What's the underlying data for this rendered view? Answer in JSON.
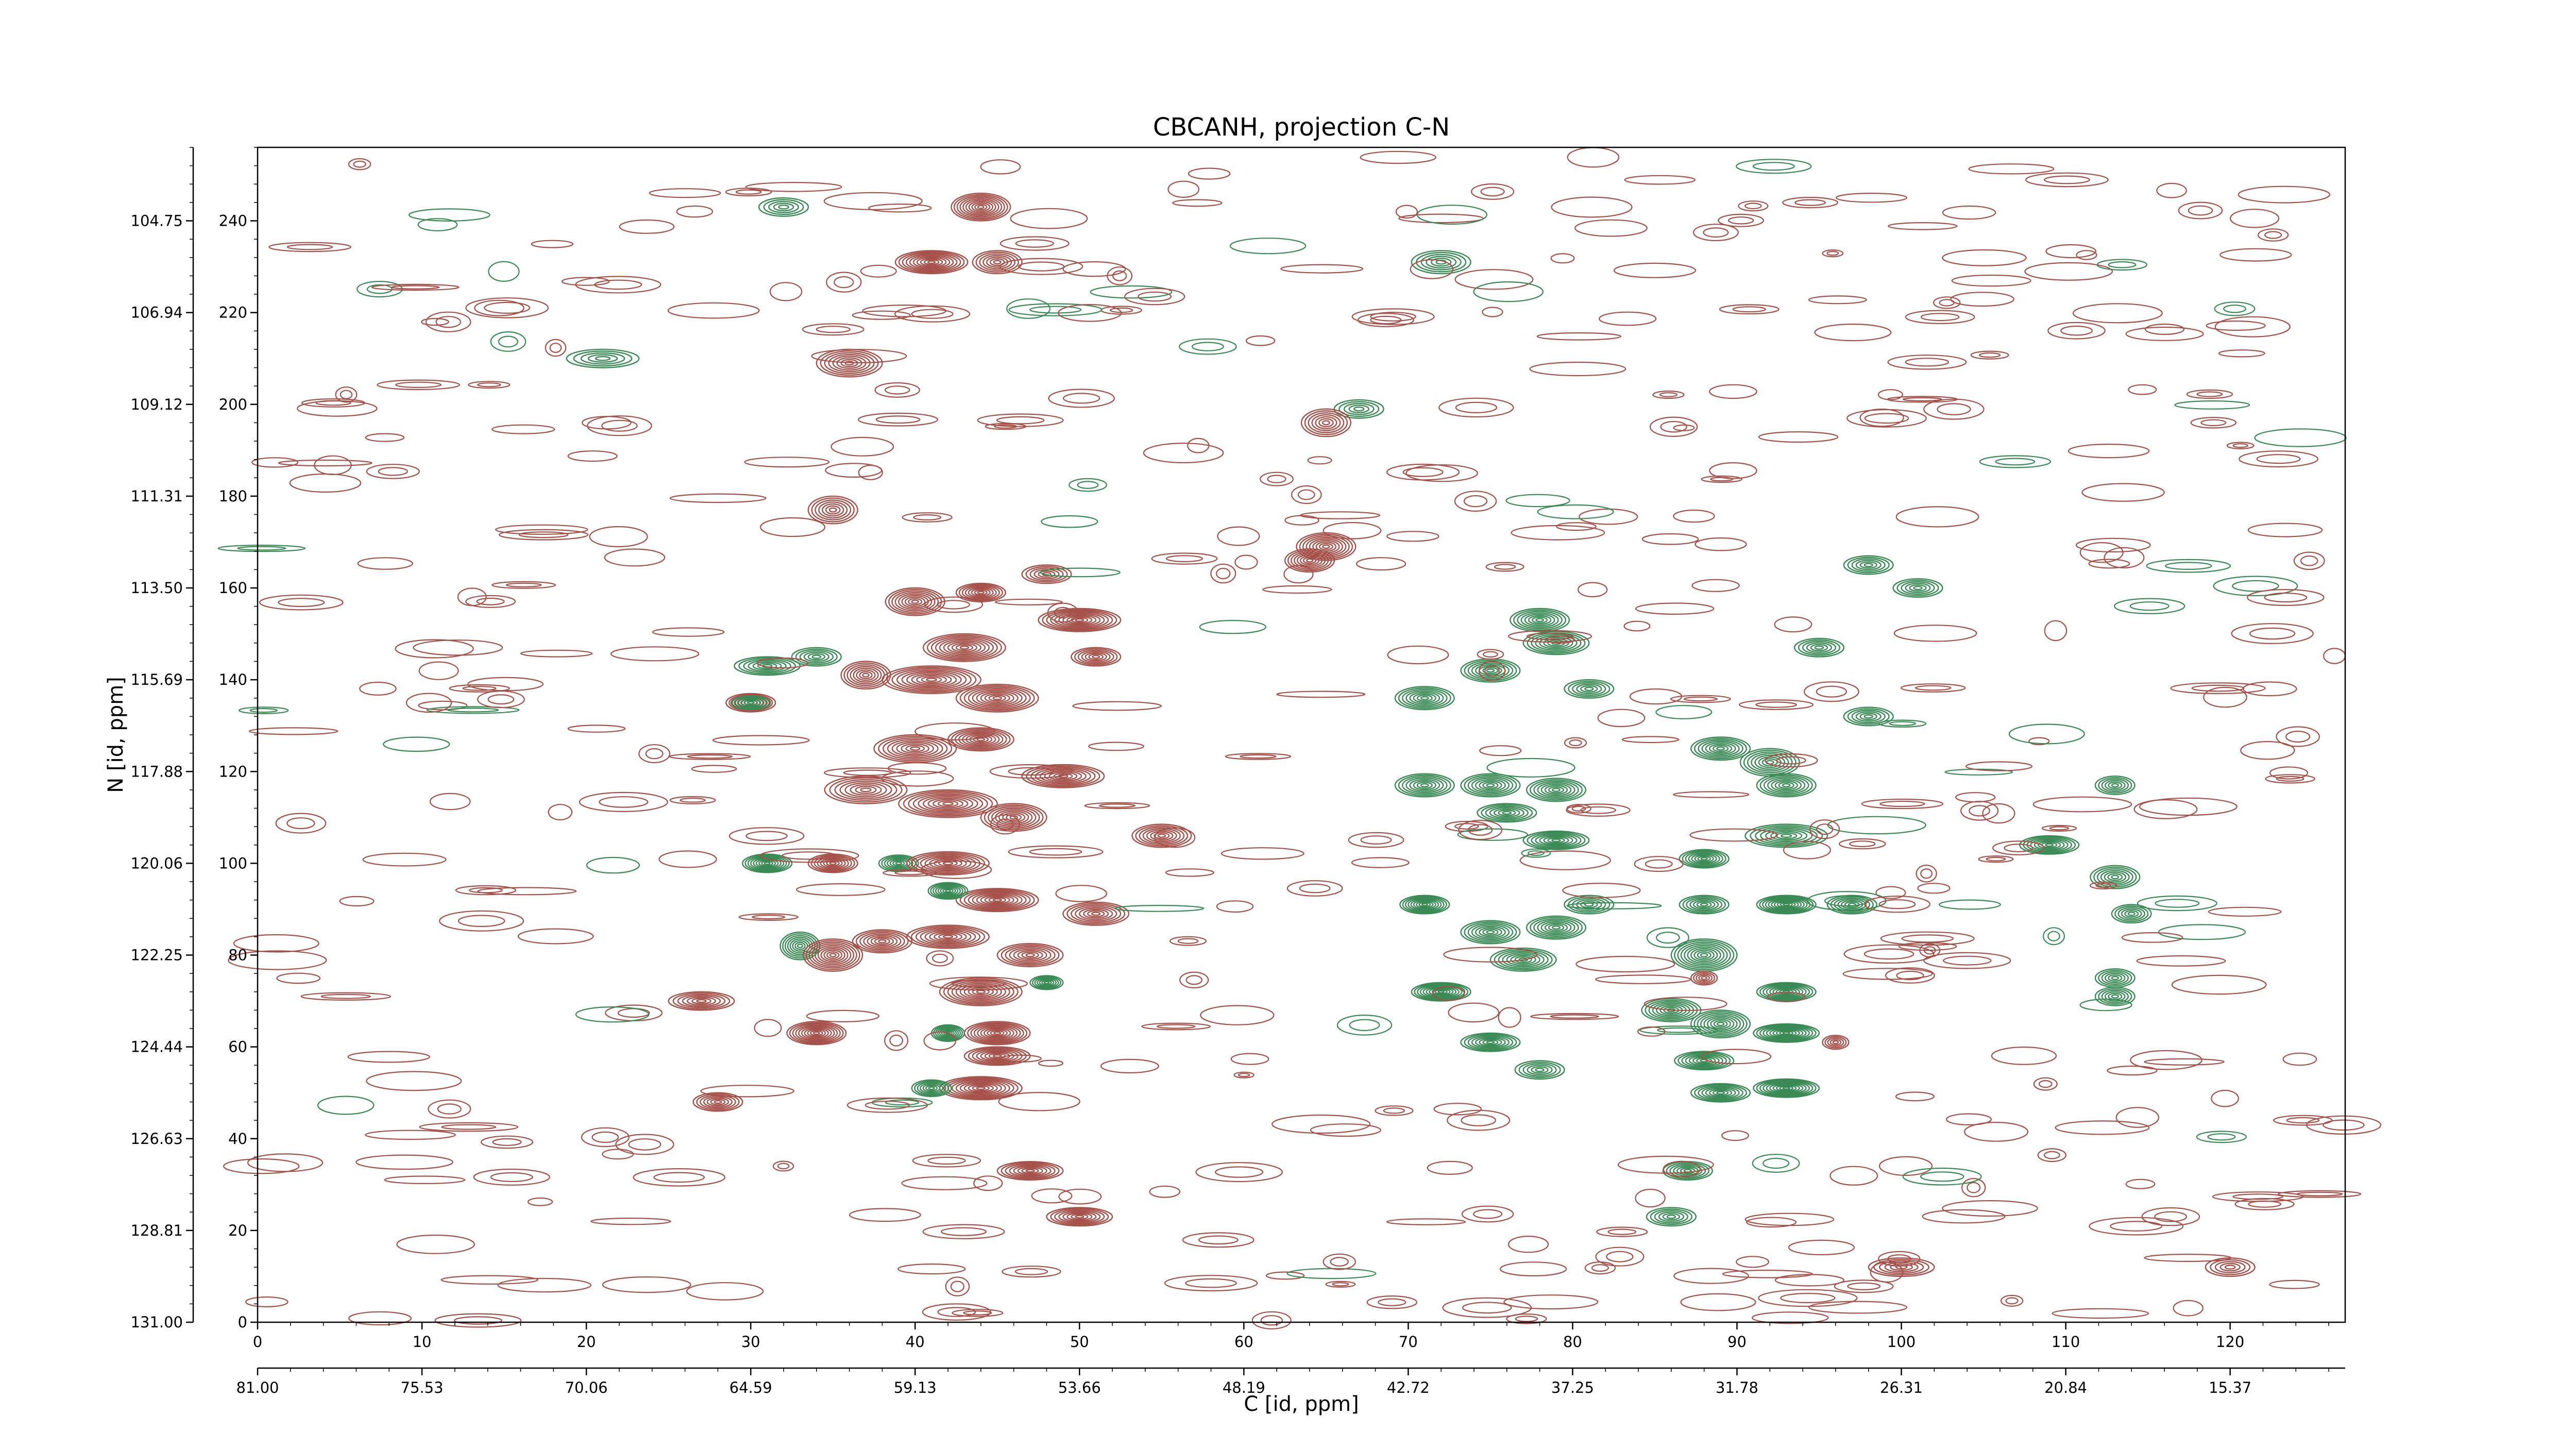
{
  "chart_data": {
    "type": "contour",
    "title": "CBCANH, projection C-N",
    "xlabel": "C [id, ppm]",
    "ylabel": "N [id, ppm]",
    "x_points_axis": {
      "range": [
        0,
        127
      ],
      "ticks": [
        "0",
        "10",
        "20",
        "30",
        "40",
        "50",
        "60",
        "70",
        "80",
        "90",
        "100",
        "110",
        "120"
      ]
    },
    "x_ppm_axis": {
      "range_ppm": [
        81.0,
        11.6
      ],
      "ticks": [
        "81.00",
        "75.53",
        "70.06",
        "64.59",
        "59.13",
        "53.66",
        "48.19",
        "42.72",
        "37.25",
        "31.78",
        "26.31",
        "20.84",
        "15.37"
      ]
    },
    "y_points_axis": {
      "range": [
        0,
        256
      ],
      "ticks": [
        "0",
        "20",
        "40",
        "60",
        "80",
        "100",
        "120",
        "140",
        "160",
        "180",
        "200",
        "220",
        "240"
      ]
    },
    "y_ppm_axis": {
      "range_ppm": [
        131.0,
        103.0
      ],
      "ticks": [
        "131.00",
        "128.81",
        "126.63",
        "124.44",
        "122.25",
        "120.06",
        "117.88",
        "115.69",
        "113.50",
        "111.31",
        "109.12",
        "106.94",
        "104.75"
      ]
    },
    "series": [
      {
        "sign": "positive",
        "color": "#a5514a"
      },
      {
        "sign": "negative",
        "color": "#3a8a55"
      }
    ],
    "peaks": [
      {
        "x": 44,
        "y": 243,
        "sign": "positive",
        "sx": 1.8,
        "sy": 3,
        "amp": 1.0
      },
      {
        "x": 41,
        "y": 231,
        "sign": "positive",
        "sx": 2.2,
        "sy": 2.5,
        "amp": 1.0
      },
      {
        "x": 45,
        "y": 231,
        "sign": "positive",
        "sx": 1.5,
        "sy": 2.5,
        "amp": 0.6
      },
      {
        "x": 32,
        "y": 243,
        "sign": "negative",
        "sx": 1.5,
        "sy": 2,
        "amp": 0.4
      },
      {
        "x": 72,
        "y": 231,
        "sign": "negative",
        "sx": 1.8,
        "sy": 2.5,
        "amp": 0.5
      },
      {
        "x": 21,
        "y": 210,
        "sign": "negative",
        "sx": 2.2,
        "sy": 2,
        "amp": 0.4
      },
      {
        "x": 36,
        "y": 209,
        "sign": "positive",
        "sx": 2,
        "sy": 3,
        "amp": 0.8
      },
      {
        "x": 67,
        "y": 199,
        "sign": "negative",
        "sx": 1.5,
        "sy": 2,
        "amp": 0.4
      },
      {
        "x": 65,
        "y": 196,
        "sign": "positive",
        "sx": 1.5,
        "sy": 3,
        "amp": 0.6
      },
      {
        "x": 35,
        "y": 177,
        "sign": "positive",
        "sx": 1.5,
        "sy": 3,
        "amp": 0.6
      },
      {
        "x": 65,
        "y": 169,
        "sign": "positive",
        "sx": 1.8,
        "sy": 3,
        "amp": 0.9
      },
      {
        "x": 64,
        "y": 166,
        "sign": "positive",
        "sx": 1.5,
        "sy": 2.5,
        "amp": 0.7
      },
      {
        "x": 40,
        "y": 157,
        "sign": "positive",
        "sx": 1.8,
        "sy": 3,
        "amp": 0.9
      },
      {
        "x": 50,
        "y": 153,
        "sign": "positive",
        "sx": 2.5,
        "sy": 2.5,
        "amp": 1.0
      },
      {
        "x": 43,
        "y": 147,
        "sign": "positive",
        "sx": 2.5,
        "sy": 3,
        "amp": 1.0
      },
      {
        "x": 37,
        "y": 141,
        "sign": "positive",
        "sx": 1.5,
        "sy": 3,
        "amp": 0.7
      },
      {
        "x": 41,
        "y": 140,
        "sign": "positive",
        "sx": 3,
        "sy": 3,
        "amp": 1.0
      },
      {
        "x": 45,
        "y": 136,
        "sign": "positive",
        "sx": 2.5,
        "sy": 3,
        "amp": 1.0
      },
      {
        "x": 31,
        "y": 143,
        "sign": "negative",
        "sx": 2,
        "sy": 2,
        "amp": 0.6
      },
      {
        "x": 34,
        "y": 145,
        "sign": "negative",
        "sx": 1.5,
        "sy": 2,
        "amp": 0.5
      },
      {
        "x": 51,
        "y": 145,
        "sign": "positive",
        "sx": 1.5,
        "sy": 2,
        "amp": 0.6
      },
      {
        "x": 30,
        "y": 135,
        "sign": "positive",
        "sx": 1.5,
        "sy": 2,
        "amp": 0.8
      },
      {
        "x": 30,
        "y": 135,
        "sign": "negative",
        "sx": 1.2,
        "sy": 1.5,
        "amp": 0.5
      },
      {
        "x": 40,
        "y": 125,
        "sign": "positive",
        "sx": 2.5,
        "sy": 3,
        "amp": 0.9
      },
      {
        "x": 44,
        "y": 127,
        "sign": "positive",
        "sx": 2,
        "sy": 2.5,
        "amp": 0.9
      },
      {
        "x": 49,
        "y": 119,
        "sign": "positive",
        "sx": 2.5,
        "sy": 2.5,
        "amp": 0.9
      },
      {
        "x": 37,
        "y": 116,
        "sign": "positive",
        "sx": 2.5,
        "sy": 3,
        "amp": 0.8
      },
      {
        "x": 42,
        "y": 113,
        "sign": "positive",
        "sx": 3,
        "sy": 3,
        "amp": 1.0
      },
      {
        "x": 46,
        "y": 110,
        "sign": "positive",
        "sx": 2,
        "sy": 3,
        "amp": 0.9
      },
      {
        "x": 55,
        "y": 106,
        "sign": "positive",
        "sx": 1.8,
        "sy": 2.5,
        "amp": 0.8
      },
      {
        "x": 31,
        "y": 100,
        "sign": "negative",
        "sx": 1.5,
        "sy": 2,
        "amp": 0.9
      },
      {
        "x": 35,
        "y": 100,
        "sign": "positive",
        "sx": 1.5,
        "sy": 2,
        "amp": 0.7
      },
      {
        "x": 39,
        "y": 100,
        "sign": "negative",
        "sx": 1.2,
        "sy": 1.8,
        "amp": 0.6
      },
      {
        "x": 42,
        "y": 100,
        "sign": "positive",
        "sx": 2.5,
        "sy": 2.5,
        "amp": 0.9
      },
      {
        "x": 45,
        "y": 92,
        "sign": "positive",
        "sx": 2.5,
        "sy": 2.5,
        "amp": 1.0
      },
      {
        "x": 42,
        "y": 94,
        "sign": "negative",
        "sx": 1.2,
        "sy": 1.8,
        "amp": 0.7
      },
      {
        "x": 33,
        "y": 82,
        "sign": "negative",
        "sx": 1.2,
        "sy": 3,
        "amp": 0.8
      },
      {
        "x": 35,
        "y": 80,
        "sign": "positive",
        "sx": 1.8,
        "sy": 3.5,
        "amp": 1.0
      },
      {
        "x": 38,
        "y": 83,
        "sign": "positive",
        "sx": 1.8,
        "sy": 2.5,
        "amp": 0.8
      },
      {
        "x": 42,
        "y": 84,
        "sign": "positive",
        "sx": 2.5,
        "sy": 2.5,
        "amp": 0.9
      },
      {
        "x": 47,
        "y": 80,
        "sign": "positive",
        "sx": 2,
        "sy": 2.5,
        "amp": 0.8
      },
      {
        "x": 44,
        "y": 72,
        "sign": "positive",
        "sx": 2.5,
        "sy": 3,
        "amp": 1.0
      },
      {
        "x": 48,
        "y": 74,
        "sign": "negative",
        "sx": 1,
        "sy": 1.5,
        "amp": 0.6
      },
      {
        "x": 34,
        "y": 63,
        "sign": "positive",
        "sx": 1.8,
        "sy": 2.5,
        "amp": 1.0
      },
      {
        "x": 42,
        "y": 63,
        "sign": "negative",
        "sx": 1,
        "sy": 1.8,
        "amp": 0.7
      },
      {
        "x": 45,
        "y": 63,
        "sign": "positive",
        "sx": 2,
        "sy": 2.5,
        "amp": 1.0
      },
      {
        "x": 45,
        "y": 58,
        "sign": "positive",
        "sx": 2,
        "sy": 2,
        "amp": 0.8
      },
      {
        "x": 44,
        "y": 51,
        "sign": "positive",
        "sx": 2.5,
        "sy": 2.5,
        "amp": 1.0
      },
      {
        "x": 41,
        "y": 51,
        "sign": "negative",
        "sx": 1.2,
        "sy": 1.8,
        "amp": 0.6
      },
      {
        "x": 27,
        "y": 70,
        "sign": "positive",
        "sx": 2,
        "sy": 2,
        "amp": 0.6
      },
      {
        "x": 28,
        "y": 48,
        "sign": "positive",
        "sx": 1.5,
        "sy": 2,
        "amp": 0.6
      },
      {
        "x": 51,
        "y": 89,
        "sign": "positive",
        "sx": 2,
        "sy": 2.5,
        "amp": 0.7
      },
      {
        "x": 47,
        "y": 33,
        "sign": "positive",
        "sx": 2,
        "sy": 2,
        "amp": 0.8
      },
      {
        "x": 50,
        "y": 23,
        "sign": "positive",
        "sx": 2,
        "sy": 2,
        "amp": 0.8
      },
      {
        "x": 71,
        "y": 136,
        "sign": "negative",
        "sx": 1.8,
        "sy": 2.5,
        "amp": 0.7
      },
      {
        "x": 78,
        "y": 153,
        "sign": "negative",
        "sx": 1.8,
        "sy": 2.5,
        "amp": 0.7
      },
      {
        "x": 79,
        "y": 148,
        "sign": "negative",
        "sx": 2,
        "sy": 2.5,
        "amp": 0.8
      },
      {
        "x": 75,
        "y": 142,
        "sign": "negative",
        "sx": 1.8,
        "sy": 2.5,
        "amp": 0.7
      },
      {
        "x": 81,
        "y": 138,
        "sign": "negative",
        "sx": 1.5,
        "sy": 2,
        "amp": 0.5
      },
      {
        "x": 71,
        "y": 117,
        "sign": "negative",
        "sx": 1.8,
        "sy": 2.5,
        "amp": 0.8
      },
      {
        "x": 75,
        "y": 117,
        "sign": "negative",
        "sx": 1.8,
        "sy": 2.5,
        "amp": 0.8
      },
      {
        "x": 79,
        "y": 116,
        "sign": "negative",
        "sx": 1.8,
        "sy": 2.5,
        "amp": 0.7
      },
      {
        "x": 76,
        "y": 111,
        "sign": "negative",
        "sx": 1.8,
        "sy": 2,
        "amp": 0.6
      },
      {
        "x": 79,
        "y": 105,
        "sign": "negative",
        "sx": 2,
        "sy": 2,
        "amp": 0.7
      },
      {
        "x": 71,
        "y": 91,
        "sign": "negative",
        "sx": 1.5,
        "sy": 2,
        "amp": 0.9
      },
      {
        "x": 75,
        "y": 85,
        "sign": "negative",
        "sx": 1.8,
        "sy": 2.5,
        "amp": 0.7
      },
      {
        "x": 79,
        "y": 86,
        "sign": "negative",
        "sx": 1.8,
        "sy": 2.5,
        "amp": 0.7
      },
      {
        "x": 77,
        "y": 79,
        "sign": "negative",
        "sx": 2,
        "sy": 2.5,
        "amp": 0.8
      },
      {
        "x": 72,
        "y": 72,
        "sign": "negative",
        "sx": 1.8,
        "sy": 2,
        "amp": 1.0
      },
      {
        "x": 75,
        "y": 61,
        "sign": "negative",
        "sx": 1.8,
        "sy": 2,
        "amp": 0.7
      },
      {
        "x": 78,
        "y": 55,
        "sign": "negative",
        "sx": 1.5,
        "sy": 2,
        "amp": 0.5
      },
      {
        "x": 81,
        "y": 91,
        "sign": "negative",
        "sx": 1.5,
        "sy": 2,
        "amp": 0.5
      },
      {
        "x": 89,
        "y": 125,
        "sign": "negative",
        "sx": 1.8,
        "sy": 2.5,
        "amp": 0.7
      },
      {
        "x": 92,
        "y": 122,
        "sign": "negative",
        "sx": 1.8,
        "sy": 3,
        "amp": 0.8
      },
      {
        "x": 93,
        "y": 117,
        "sign": "negative",
        "sx": 1.8,
        "sy": 2.5,
        "amp": 0.7
      },
      {
        "x": 93,
        "y": 106,
        "sign": "negative",
        "sx": 2.5,
        "sy": 2.5,
        "amp": 0.8
      },
      {
        "x": 88,
        "y": 101,
        "sign": "negative",
        "sx": 1.5,
        "sy": 2,
        "amp": 0.7
      },
      {
        "x": 93,
        "y": 91,
        "sign": "negative",
        "sx": 1.8,
        "sy": 2,
        "amp": 1.0
      },
      {
        "x": 88,
        "y": 91,
        "sign": "negative",
        "sx": 1.5,
        "sy": 2,
        "amp": 0.6
      },
      {
        "x": 88,
        "y": 80,
        "sign": "negative",
        "sx": 2,
        "sy": 3.5,
        "amp": 1.0
      },
      {
        "x": 86,
        "y": 68,
        "sign": "negative",
        "sx": 1.8,
        "sy": 2.5,
        "amp": 0.8
      },
      {
        "x": 89,
        "y": 65,
        "sign": "negative",
        "sx": 1.8,
        "sy": 3,
        "amp": 0.9
      },
      {
        "x": 93,
        "y": 72,
        "sign": "negative",
        "sx": 1.8,
        "sy": 2,
        "amp": 0.9
      },
      {
        "x": 93,
        "y": 63,
        "sign": "negative",
        "sx": 2,
        "sy": 2,
        "amp": 1.0
      },
      {
        "x": 93,
        "y": 51,
        "sign": "negative",
        "sx": 2,
        "sy": 2,
        "amp": 1.0
      },
      {
        "x": 88,
        "y": 57,
        "sign": "negative",
        "sx": 1.8,
        "sy": 2,
        "amp": 0.8
      },
      {
        "x": 89,
        "y": 50,
        "sign": "negative",
        "sx": 1.8,
        "sy": 2,
        "amp": 0.7
      },
      {
        "x": 87,
        "y": 33,
        "sign": "negative",
        "sx": 1.5,
        "sy": 2,
        "amp": 0.6
      },
      {
        "x": 86,
        "y": 23,
        "sign": "negative",
        "sx": 1.5,
        "sy": 2,
        "amp": 0.5
      },
      {
        "x": 88,
        "y": 75,
        "sign": "positive",
        "sx": 0.8,
        "sy": 1.5,
        "amp": 0.4
      },
      {
        "x": 96,
        "y": 61,
        "sign": "positive",
        "sx": 0.8,
        "sy": 1.5,
        "amp": 0.4
      },
      {
        "x": 97,
        "y": 91,
        "sign": "negative",
        "sx": 1.5,
        "sy": 2,
        "amp": 0.6
      },
      {
        "x": 95,
        "y": 147,
        "sign": "negative",
        "sx": 1.5,
        "sy": 2,
        "amp": 0.5
      },
      {
        "x": 98,
        "y": 132,
        "sign": "negative",
        "sx": 1.5,
        "sy": 2,
        "amp": 0.5
      },
      {
        "x": 101,
        "y": 160,
        "sign": "negative",
        "sx": 1.5,
        "sy": 2,
        "amp": 0.5
      },
      {
        "x": 98,
        "y": 165,
        "sign": "negative",
        "sx": 1.5,
        "sy": 2,
        "amp": 0.5
      },
      {
        "x": 109,
        "y": 104,
        "sign": "negative",
        "sx": 1.8,
        "sy": 2,
        "amp": 0.7
      },
      {
        "x": 113,
        "y": 117,
        "sign": "negative",
        "sx": 1.2,
        "sy": 2,
        "amp": 0.5
      },
      {
        "x": 113,
        "y": 97,
        "sign": "negative",
        "sx": 1.5,
        "sy": 2.5,
        "amp": 0.6
      },
      {
        "x": 114,
        "y": 89,
        "sign": "negative",
        "sx": 1.2,
        "sy": 2,
        "amp": 0.5
      },
      {
        "x": 113,
        "y": 75,
        "sign": "negative",
        "sx": 1.2,
        "sy": 2,
        "amp": 0.5
      },
      {
        "x": 113,
        "y": 71,
        "sign": "negative",
        "sx": 1.2,
        "sy": 2,
        "amp": 0.5
      },
      {
        "x": 44,
        "y": 159,
        "sign": "positive",
        "sx": 1.5,
        "sy": 2,
        "amp": 0.7
      },
      {
        "x": 48,
        "y": 163,
        "sign": "positive",
        "sx": 1.5,
        "sy": 2,
        "amp": 0.5
      },
      {
        "x": 100,
        "y": 12,
        "sign": "positive",
        "sx": 2,
        "sy": 2,
        "amp": 0.5
      },
      {
        "x": 120,
        "y": 12,
        "sign": "positive",
        "sx": 1.5,
        "sy": 2,
        "amp": 0.4
      }
    ]
  }
}
